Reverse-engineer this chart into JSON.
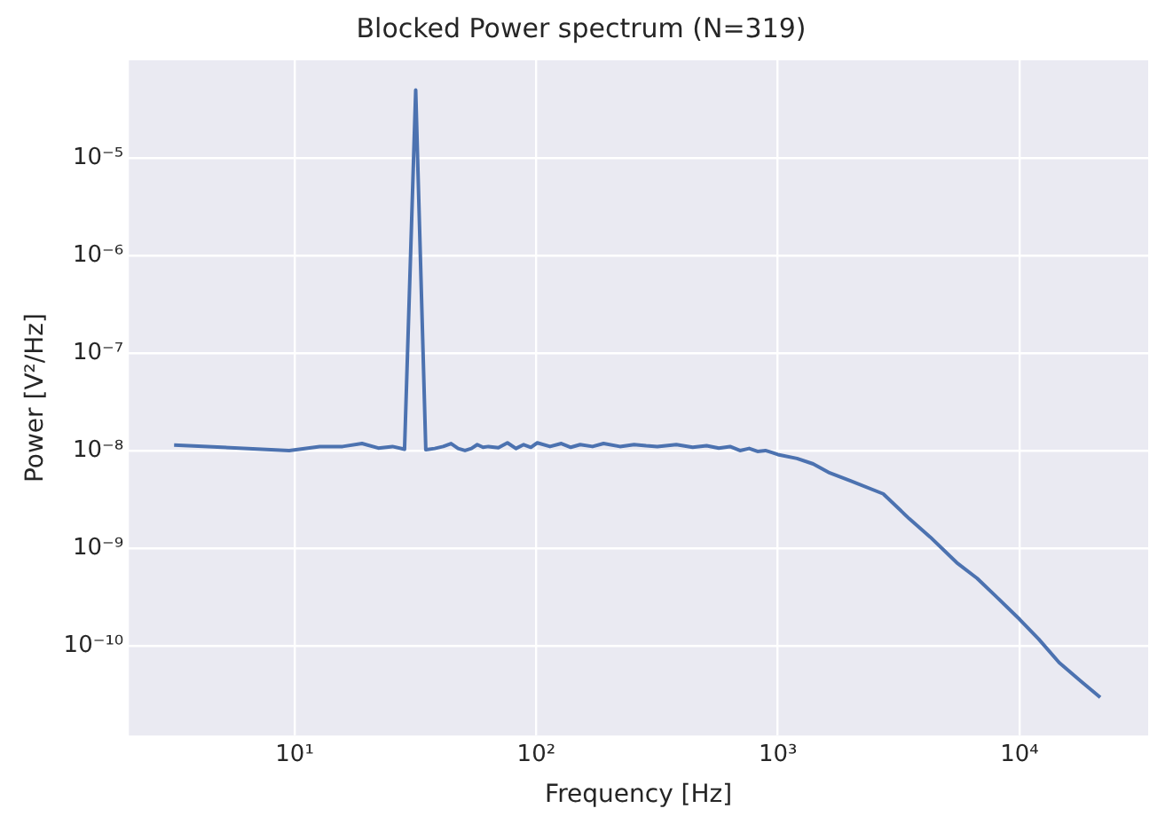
{
  "chart_data": {
    "type": "line",
    "title": "Blocked Power spectrum (N=319)",
    "xlabel": "Frequency [Hz]",
    "ylabel": "Power [V²/Hz]",
    "log": "xy",
    "grid": true,
    "legend": false,
    "xlim": [
      2.06,
      34100
    ],
    "ylim": [
      1.2e-11,
      0.0001
    ],
    "xticks": [
      {
        "value": 10,
        "label": "10¹"
      },
      {
        "value": 100,
        "label": "10²"
      },
      {
        "value": 1000,
        "label": "10³"
      },
      {
        "value": 10000,
        "label": "10⁴"
      }
    ],
    "yticks": [
      {
        "value": 1e-10,
        "label": "10⁻¹⁰"
      },
      {
        "value": 1e-09,
        "label": "10⁻⁹"
      },
      {
        "value": 1e-08,
        "label": "10⁻⁸"
      },
      {
        "value": 1e-07,
        "label": "10⁻⁷"
      },
      {
        "value": 1e-06,
        "label": "10⁻⁶"
      },
      {
        "value": 1e-05,
        "label": "10⁻⁵"
      }
    ],
    "x": [
      3.17,
      9.5,
      12.7,
      15.8,
      19,
      22.2,
      25.4,
      28.5,
      31.7,
      34.9,
      38,
      41.2,
      44.4,
      47.5,
      50.7,
      53.9,
      57,
      60.2,
      63.4,
      69.7,
      76,
      82.4,
      88.7,
      95,
      101,
      114,
      127,
      139,
      152,
      171,
      190,
      222,
      254,
      285,
      317,
      380,
      444,
      507,
      570,
      634,
      697,
      761,
      824,
      888,
      951,
      1000,
      1200,
      1400,
      1640,
      2000,
      2730,
      3500,
      4270,
      5500,
      6680,
      8000,
      10000,
      12000,
      14600,
      18000,
      21600
    ],
    "series": [
      {
        "color": "#4c72b0",
        "values": [
          1.14e-08,
          1e-08,
          1.1e-08,
          1.1e-08,
          1.18e-08,
          1.06e-08,
          1.1e-08,
          1.03e-08,
          4.95e-05,
          1.02e-08,
          1.05e-08,
          1.1e-08,
          1.18e-08,
          1.05e-08,
          1e-08,
          1.05e-08,
          1.15e-08,
          1.08e-08,
          1.1e-08,
          1.07e-08,
          1.2e-08,
          1.05e-08,
          1.15e-08,
          1.08e-08,
          1.2e-08,
          1.1e-08,
          1.18e-08,
          1.08e-08,
          1.15e-08,
          1.1e-08,
          1.18e-08,
          1.1e-08,
          1.15e-08,
          1.12e-08,
          1.1e-08,
          1.15e-08,
          1.08e-08,
          1.12e-08,
          1.06e-08,
          1.1e-08,
          1e-08,
          1.05e-08,
          9.8e-09,
          1e-08,
          9.5e-09,
          9.1e-09,
          8.3e-09,
          7.3e-09,
          5.9e-09,
          4.9e-09,
          3.6e-09,
          2e-09,
          1.3e-09,
          7.1e-10,
          4.9e-10,
          3.2e-10,
          1.87e-10,
          1.17e-10,
          6.7e-11,
          4.3e-11,
          2.95e-11
        ]
      }
    ]
  }
}
